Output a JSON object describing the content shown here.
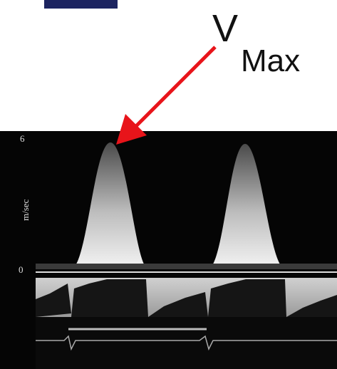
{
  "annotation": {
    "main": "V",
    "subscript": "Max"
  },
  "axis": {
    "top": "6",
    "zero": "0",
    "unit": "m/sec"
  }
}
